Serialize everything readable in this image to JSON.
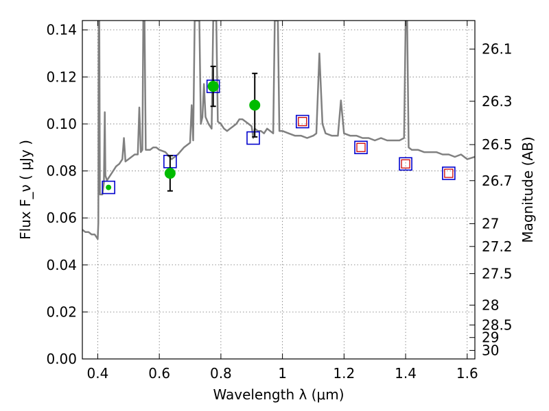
{
  "chart_data": {
    "type": "scatter",
    "xlabel": "Wavelength  λ (μm)",
    "ylabel": "Flux  F_ν  ( μJy )",
    "y2label": "Magnitude (AB)",
    "xlim": [
      0.35,
      1.625
    ],
    "ylim": [
      0.0,
      0.144
    ],
    "x_ticks": [
      "0.4",
      "0.6",
      "0.8",
      "1",
      "1.2",
      "1.4",
      "1.6"
    ],
    "y_ticks": [
      "0.00",
      "0.02",
      "0.04",
      "0.06",
      "0.08",
      "0.10",
      "0.12",
      "0.14"
    ],
    "mag_ticks": [
      "26.1",
      "26.3",
      "26.5",
      "26.7",
      "27",
      "27.2",
      "27.5",
      "28",
      "28.5",
      "29",
      "30"
    ],
    "grid": true,
    "colors": {
      "spectrum": "#808080",
      "observed": "#00bb00",
      "model": "#0000cc",
      "predicted": "#cc0000",
      "errorbar": "#000000"
    },
    "series": [
      {
        "kind": "line",
        "points": [
          [
            0.35,
            0.055
          ],
          [
            0.36,
            0.054
          ],
          [
            0.37,
            0.054
          ],
          [
            0.38,
            0.053
          ],
          [
            0.39,
            0.053
          ],
          [
            0.395,
            0.052
          ],
          [
            0.4,
            0.051
          ],
          [
            0.402,
            0.058
          ],
          [
            0.403,
            0.144
          ],
          [
            0.405,
            0.144
          ],
          [
            0.407,
            0.07
          ],
          [
            0.415,
            0.07
          ],
          [
            0.42,
            0.075
          ],
          [
            0.423,
            0.105
          ],
          [
            0.425,
            0.078
          ],
          [
            0.43,
            0.076
          ],
          [
            0.44,
            0.078
          ],
          [
            0.45,
            0.08
          ],
          [
            0.46,
            0.082
          ],
          [
            0.47,
            0.083
          ],
          [
            0.48,
            0.085
          ],
          [
            0.485,
            0.094
          ],
          [
            0.49,
            0.084
          ],
          [
            0.5,
            0.085
          ],
          [
            0.52,
            0.087
          ],
          [
            0.53,
            0.087
          ],
          [
            0.535,
            0.107
          ],
          [
            0.54,
            0.088
          ],
          [
            0.545,
            0.089
          ],
          [
            0.548,
            0.144
          ],
          [
            0.552,
            0.144
          ],
          [
            0.556,
            0.089
          ],
          [
            0.57,
            0.089
          ],
          [
            0.58,
            0.09
          ],
          [
            0.59,
            0.09
          ],
          [
            0.6,
            0.089
          ],
          [
            0.62,
            0.088
          ],
          [
            0.64,
            0.085
          ],
          [
            0.65,
            0.086
          ],
          [
            0.66,
            0.087
          ],
          [
            0.68,
            0.09
          ],
          [
            0.7,
            0.092
          ],
          [
            0.705,
            0.108
          ],
          [
            0.71,
            0.093
          ],
          [
            0.715,
            0.144
          ],
          [
            0.73,
            0.144
          ],
          [
            0.735,
            0.1
          ],
          [
            0.74,
            0.103
          ],
          [
            0.745,
            0.117
          ],
          [
            0.75,
            0.103
          ],
          [
            0.76,
            0.1
          ],
          [
            0.77,
            0.098
          ],
          [
            0.775,
            0.144
          ],
          [
            0.785,
            0.144
          ],
          [
            0.79,
            0.101
          ],
          [
            0.8,
            0.1
          ],
          [
            0.81,
            0.098
          ],
          [
            0.82,
            0.097
          ],
          [
            0.83,
            0.098
          ],
          [
            0.84,
            0.099
          ],
          [
            0.85,
            0.1
          ],
          [
            0.86,
            0.102
          ],
          [
            0.87,
            0.102
          ],
          [
            0.88,
            0.101
          ],
          [
            0.89,
            0.1
          ],
          [
            0.9,
            0.099
          ],
          [
            0.905,
            0.094
          ],
          [
            0.91,
            0.098
          ],
          [
            0.92,
            0.097
          ],
          [
            0.93,
            0.097
          ],
          [
            0.94,
            0.096
          ],
          [
            0.95,
            0.098
          ],
          [
            0.96,
            0.097
          ],
          [
            0.97,
            0.096
          ],
          [
            0.975,
            0.144
          ],
          [
            0.985,
            0.144
          ],
          [
            0.99,
            0.097
          ],
          [
            1.0,
            0.097
          ],
          [
            1.02,
            0.096
          ],
          [
            1.04,
            0.095
          ],
          [
            1.06,
            0.095
          ],
          [
            1.08,
            0.094
          ],
          [
            1.1,
            0.095
          ],
          [
            1.11,
            0.096
          ],
          [
            1.12,
            0.13
          ],
          [
            1.13,
            0.1
          ],
          [
            1.14,
            0.096
          ],
          [
            1.16,
            0.095
          ],
          [
            1.18,
            0.095
          ],
          [
            1.19,
            0.11
          ],
          [
            1.2,
            0.096
          ],
          [
            1.22,
            0.095
          ],
          [
            1.24,
            0.095
          ],
          [
            1.26,
            0.094
          ],
          [
            1.28,
            0.094
          ],
          [
            1.3,
            0.093
          ],
          [
            1.32,
            0.094
          ],
          [
            1.34,
            0.093
          ],
          [
            1.36,
            0.093
          ],
          [
            1.38,
            0.093
          ],
          [
            1.395,
            0.094
          ],
          [
            1.4,
            0.144
          ],
          [
            1.405,
            0.144
          ],
          [
            1.41,
            0.09
          ],
          [
            1.42,
            0.089
          ],
          [
            1.44,
            0.089
          ],
          [
            1.46,
            0.088
          ],
          [
            1.48,
            0.088
          ],
          [
            1.5,
            0.088
          ],
          [
            1.52,
            0.087
          ],
          [
            1.54,
            0.087
          ],
          [
            1.56,
            0.086
          ],
          [
            1.58,
            0.087
          ],
          [
            1.6,
            0.085
          ],
          [
            1.625,
            0.086
          ]
        ]
      },
      {
        "kind": "model-box",
        "points": [
          [
            0.435,
            0.073
          ],
          [
            0.635,
            0.084
          ],
          [
            0.775,
            0.116
          ],
          [
            0.905,
            0.094
          ],
          [
            1.065,
            0.101
          ],
          [
            1.255,
            0.09
          ],
          [
            1.4,
            0.083
          ],
          [
            1.54,
            0.079
          ]
        ]
      },
      {
        "kind": "predicted-box",
        "points": [
          [
            1.065,
            0.101
          ],
          [
            1.255,
            0.09
          ],
          [
            1.4,
            0.083
          ],
          [
            1.54,
            0.079
          ]
        ]
      },
      {
        "kind": "observed",
        "points": [
          [
            0.435,
            0.073,
            0.0
          ],
          [
            0.635,
            0.079,
            0.0075
          ],
          [
            0.775,
            0.116,
            0.0085
          ],
          [
            0.91,
            0.108,
            0.0135
          ]
        ]
      }
    ]
  }
}
